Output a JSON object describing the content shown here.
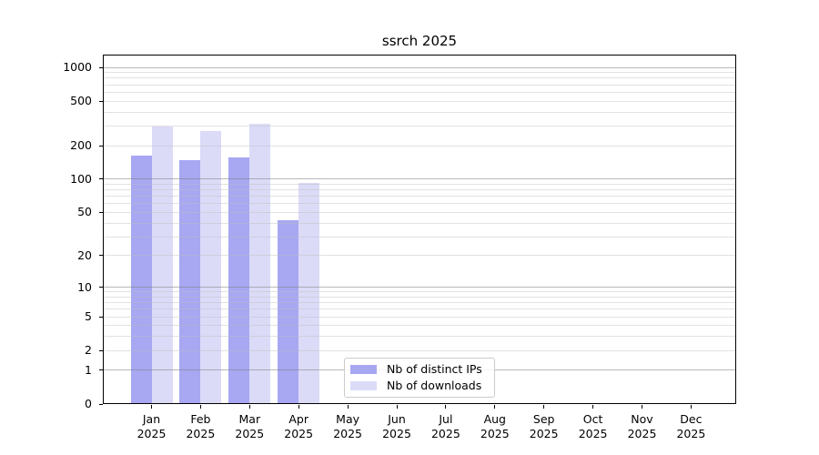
{
  "chart_data": {
    "type": "bar",
    "title": "ssrch 2025",
    "categories": [
      "Jan 2025",
      "Feb 2025",
      "Mar 2025",
      "Apr 2025",
      "May 2025",
      "Jun 2025",
      "Jul 2025",
      "Aug 2025",
      "Sep 2025",
      "Oct 2025",
      "Nov 2025",
      "Dec 2025"
    ],
    "series": [
      {
        "name": "Nb of distinct IPs",
        "color": "#a7a7f2",
        "values": [
          160,
          146,
          154,
          42,
          null,
          null,
          null,
          null,
          null,
          null,
          null,
          null
        ]
      },
      {
        "name": "Nb of downloads",
        "color": "#dbdbf8",
        "values": [
          292,
          267,
          307,
          90,
          null,
          null,
          null,
          null,
          null,
          null,
          null,
          null
        ]
      }
    ],
    "xlabel": "",
    "ylabel": "",
    "y_axis": {
      "scale": "log10(value+1)",
      "ticks": [
        0,
        1,
        2,
        5,
        10,
        20,
        50,
        100,
        200,
        500,
        1000
      ],
      "major_gridlines": [
        1,
        10,
        100,
        1000
      ],
      "minor_gridlines": [
        2,
        3,
        4,
        5,
        6,
        7,
        8,
        9,
        20,
        30,
        40,
        50,
        60,
        70,
        80,
        90,
        200,
        300,
        400,
        500,
        600,
        700,
        800,
        900
      ],
      "ylim": [
        0,
        1300
      ]
    },
    "grid": "horizontal only, drawn over bars",
    "legend": {
      "position": "lower center",
      "labels": [
        "Nb of distinct IPs",
        "Nb of downloads"
      ]
    }
  },
  "colors": {
    "bar_distinct_ips": "#a7a7f2",
    "bar_downloads": "#dbdbf8",
    "major_grid": "#808080",
    "minor_grid": "#dedede",
    "spine": "#000000",
    "legend_border": "#cccccc",
    "background": "#ffffff"
  }
}
